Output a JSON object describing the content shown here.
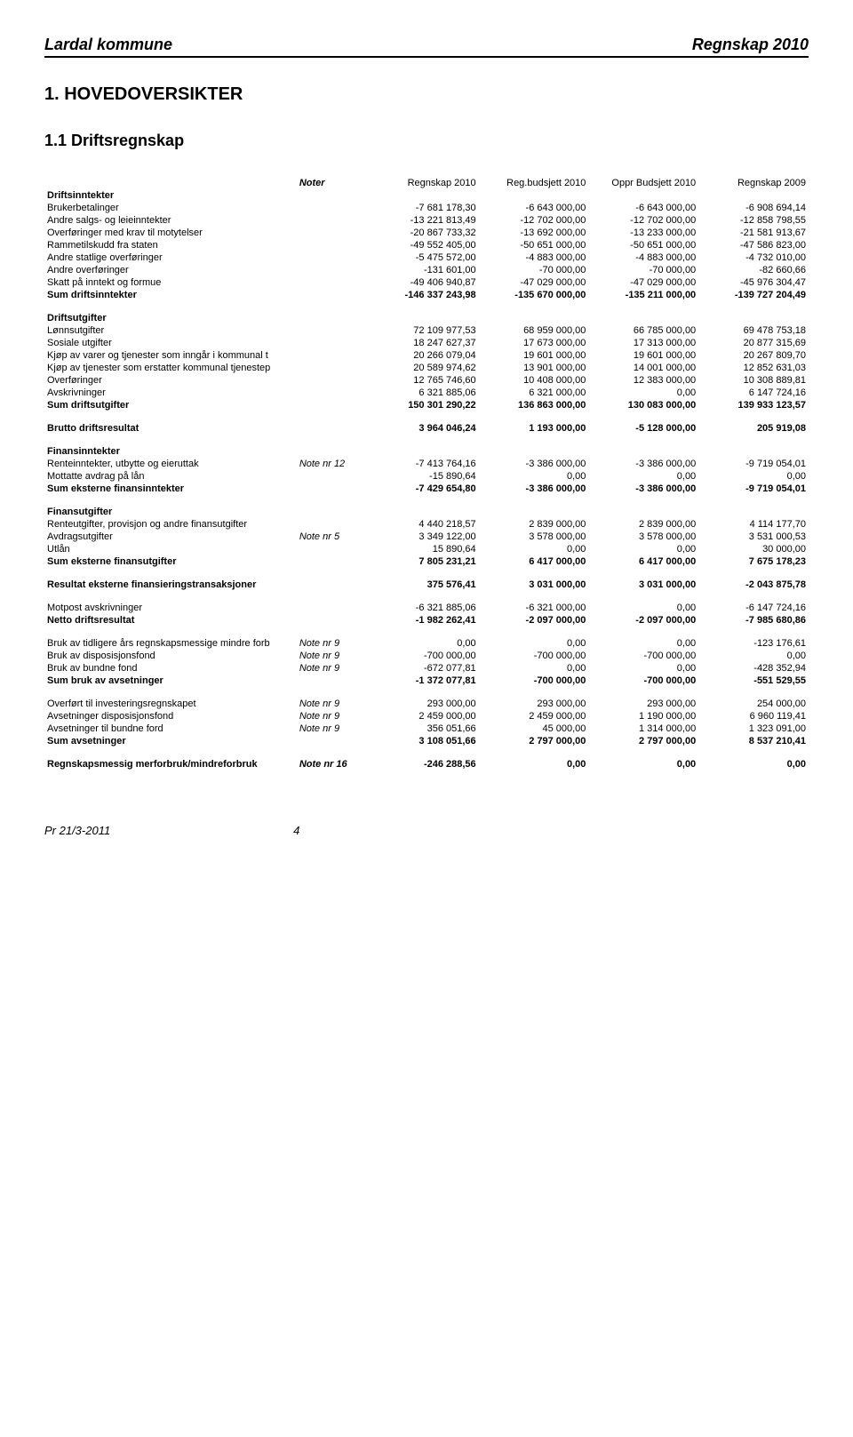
{
  "header": {
    "left": "Lardal kommune",
    "right": "Regnskap 2010"
  },
  "title": "1.  HOVEDOVERSIKTER",
  "subtitle": "1.1  Driftsregnskap",
  "columns": {
    "note": "Noter",
    "c1": "Regnskap 2010",
    "c2": "Reg.budsjett 2010",
    "c3": "Oppr Budsjett 2010",
    "c4": "Regnskap 2009"
  },
  "sections": [
    {
      "heading": "Driftsinntekter",
      "rows": [
        {
          "label": "Brukerbetalinger",
          "c1": "-7 681 178,30",
          "c2": "-6 643 000,00",
          "c3": "-6 643 000,00",
          "c4": "-6 908 694,14"
        },
        {
          "label": "Andre salgs- og leieinntekter",
          "c1": "-13 221 813,49",
          "c2": "-12 702 000,00",
          "c3": "-12 702 000,00",
          "c4": "-12 858 798,55"
        },
        {
          "label": "Overføringer med krav til motytelser",
          "c1": "-20 867 733,32",
          "c2": "-13 692 000,00",
          "c3": "-13 233 000,00",
          "c4": "-21 581 913,67"
        },
        {
          "label": "Rammetilskudd fra staten",
          "c1": "-49 552 405,00",
          "c2": "-50 651 000,00",
          "c3": "-50 651 000,00",
          "c4": "-47 586 823,00"
        },
        {
          "label": "Andre statlige overføringer",
          "c1": "-5 475 572,00",
          "c2": "-4 883 000,00",
          "c3": "-4 883 000,00",
          "c4": "-4 732 010,00"
        },
        {
          "label": "Andre overføringer",
          "c1": "-131 601,00",
          "c2": "-70 000,00",
          "c3": "-70 000,00",
          "c4": "-82 660,66"
        },
        {
          "label": "Skatt på inntekt og formue",
          "c1": "-49 406 940,87",
          "c2": "-47 029 000,00",
          "c3": "-47 029 000,00",
          "c4": "-45 976 304,47"
        }
      ],
      "sum": {
        "label": "Sum driftsinntekter",
        "c1": "-146 337 243,98",
        "c2": "-135 670 000,00",
        "c3": "-135 211 000,00",
        "c4": "-139 727 204,49"
      }
    },
    {
      "heading": "Driftsutgifter",
      "rows": [
        {
          "label": "Lønnsutgifter",
          "c1": "72 109 977,53",
          "c2": "68 959 000,00",
          "c3": "66 785 000,00",
          "c4": "69 478 753,18"
        },
        {
          "label": "Sosiale utgifter",
          "c1": "18 247 627,37",
          "c2": "17 673 000,00",
          "c3": "17 313 000,00",
          "c4": "20 877 315,69"
        },
        {
          "label": "Kjøp av varer og tjenester som inngår i kommunal t",
          "c1": "20 266 079,04",
          "c2": "19 601 000,00",
          "c3": "19 601 000,00",
          "c4": "20 267 809,70"
        },
        {
          "label": "Kjøp av tjenester som erstatter kommunal tjenestep",
          "c1": "20 589 974,62",
          "c2": "13 901 000,00",
          "c3": "14 001 000,00",
          "c4": "12 852 631,03"
        },
        {
          "label": "Overføringer",
          "c1": "12 765 746,60",
          "c2": "10 408 000,00",
          "c3": "12 383 000,00",
          "c4": "10 308 889,81"
        },
        {
          "label": "Avskrivninger",
          "c1": "6 321 885,06",
          "c2": "6 321 000,00",
          "c3": "0,00",
          "c4": "6 147 724,16"
        }
      ],
      "sum": {
        "label": "Sum driftsutgifter",
        "c1": "150 301 290,22",
        "c2": "136 863 000,00",
        "c3": "130 083 000,00",
        "c4": "139 933 123,57"
      }
    }
  ],
  "brutto": {
    "label": "Brutto driftsresultat",
    "c1": "3 964 046,24",
    "c2": "1 193 000,00",
    "c3": "-5 128 000,00",
    "c4": "205 919,08"
  },
  "finansinntekter": {
    "heading": "Finansinntekter",
    "rows": [
      {
        "label": "Renteinntekter, utbytte og eieruttak",
        "note": "Note nr 12",
        "c1": "-7 413 764,16",
        "c2": "-3 386 000,00",
        "c3": "-3 386 000,00",
        "c4": "-9 719 054,01"
      },
      {
        "label": "Mottatte avdrag på lån",
        "c1": "-15 890,64",
        "c2": "0,00",
        "c3": "0,00",
        "c4": "0,00"
      }
    ],
    "sum": {
      "label": "Sum eksterne finansinntekter",
      "c1": "-7 429 654,80",
      "c2": "-3 386 000,00",
      "c3": "-3 386 000,00",
      "c4": "-9 719 054,01"
    }
  },
  "finansutgifter": {
    "heading": "Finansutgifter",
    "rows": [
      {
        "label": "Renteutgifter, provisjon og andre finansutgifter",
        "c1": "4 440 218,57",
        "c2": "2 839 000,00",
        "c3": "2 839 000,00",
        "c4": "4 114 177,70"
      },
      {
        "label": "Avdragsutgifter",
        "note": "Note nr 5",
        "c1": "3 349 122,00",
        "c2": "3 578 000,00",
        "c3": "3 578 000,00",
        "c4": "3 531 000,53"
      },
      {
        "label": "Utlån",
        "c1": "15 890,64",
        "c2": "0,00",
        "c3": "0,00",
        "c4": "30 000,00"
      }
    ],
    "sum": {
      "label": "Sum eksterne finansutgifter",
      "c1": "7 805 231,21",
      "c2": "6 417 000,00",
      "c3": "6 417 000,00",
      "c4": "7 675 178,23"
    }
  },
  "resultat_eksterne": {
    "label": "Resultat eksterne finansieringstransaksjoner",
    "c1": "375 576,41",
    "c2": "3 031 000,00",
    "c3": "3 031 000,00",
    "c4": "-2 043 875,78"
  },
  "motpost": {
    "label": "Motpost avskrivninger",
    "c1": "-6 321 885,06",
    "c2": "-6 321 000,00",
    "c3": "0,00",
    "c4": "-6 147 724,16"
  },
  "netto": {
    "label": "Netto driftsresultat",
    "c1": "-1 982 262,41",
    "c2": "-2 097 000,00",
    "c3": "-2 097 000,00",
    "c4": "-7 985 680,86"
  },
  "bruk": {
    "rows": [
      {
        "label": "Bruk av tidligere års regnskapsmessige mindre forb",
        "note": "Note nr 9",
        "c1": "0,00",
        "c2": "0,00",
        "c3": "0,00",
        "c4": "-123 176,61"
      },
      {
        "label": "Bruk av disposisjonsfond",
        "note": "Note nr 9",
        "c1": "-700 000,00",
        "c2": "-700 000,00",
        "c3": "-700 000,00",
        "c4": "0,00"
      },
      {
        "label": "Bruk av bundne fond",
        "note": "Note nr 9",
        "c1": "-672 077,81",
        "c2": "0,00",
        "c3": "0,00",
        "c4": "-428 352,94"
      }
    ],
    "sum": {
      "label": "Sum bruk av avsetninger",
      "c1": "-1 372 077,81",
      "c2": "-700 000,00",
      "c3": "-700 000,00",
      "c4": "-551 529,55"
    }
  },
  "avsetninger": {
    "rows": [
      {
        "label": "Overført til investeringsregnskapet",
        "note": "Note nr 9",
        "c1": "293 000,00",
        "c2": "293 000,00",
        "c3": "293 000,00",
        "c4": "254 000,00"
      },
      {
        "label": "Avsetninger disposisjonsfond",
        "note": "Note nr 9",
        "c1": "2 459 000,00",
        "c2": "2 459 000,00",
        "c3": "1 190 000,00",
        "c4": "6 960 119,41"
      },
      {
        "label": "Avsetninger til bundne ford",
        "note": "Note nr 9",
        "c1": "356 051,66",
        "c2": "45 000,00",
        "c3": "1 314 000,00",
        "c4": "1 323 091,00"
      }
    ],
    "sum": {
      "label": "Sum avsetninger",
      "c1": "3 108 051,66",
      "c2": "2 797 000,00",
      "c3": "2 797 000,00",
      "c4": "8 537 210,41"
    }
  },
  "regnskapsmessig": {
    "label": "Regnskapsmessig merforbruk/mindreforbruk",
    "note": "Note nr 16",
    "c1": "-246 288,56",
    "c2": "0,00",
    "c3": "0,00",
    "c4": "0,00"
  },
  "footer": {
    "left": "Pr 21/3-2011",
    "page": "4"
  }
}
